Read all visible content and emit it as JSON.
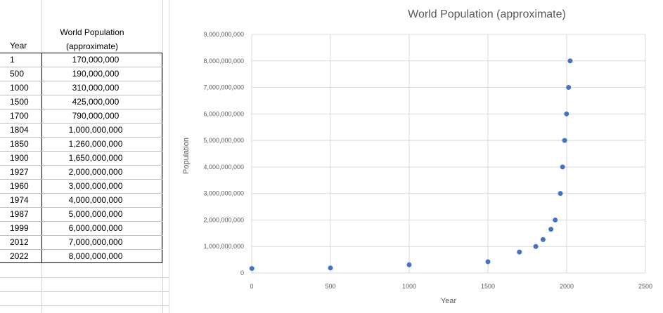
{
  "table": {
    "header_year": "Year",
    "header_pop_line1": "World Population",
    "header_pop_line2": "(approximate)",
    "rows": [
      {
        "year": "1",
        "pop": "170,000,000"
      },
      {
        "year": "500",
        "pop": "190,000,000"
      },
      {
        "year": "1000",
        "pop": "310,000,000"
      },
      {
        "year": "1500",
        "pop": "425,000,000"
      },
      {
        "year": "1700",
        "pop": "790,000,000"
      },
      {
        "year": "1804",
        "pop": "1,000,000,000"
      },
      {
        "year": "1850",
        "pop": "1,260,000,000"
      },
      {
        "year": "1900",
        "pop": "1,650,000,000"
      },
      {
        "year": "1927",
        "pop": "2,000,000,000"
      },
      {
        "year": "1960",
        "pop": "3,000,000,000"
      },
      {
        "year": "1974",
        "pop": "4,000,000,000"
      },
      {
        "year": "1987",
        "pop": "5,000,000,000"
      },
      {
        "year": "1999",
        "pop": "6,000,000,000"
      },
      {
        "year": "2012",
        "pop": "7,000,000,000"
      },
      {
        "year": "2022",
        "pop": "8,000,000,000"
      }
    ]
  },
  "chart_data": {
    "type": "scatter",
    "title": "World Population (approximate)",
    "xlabel": "Year",
    "ylabel": "Population",
    "xlim": [
      0,
      2500
    ],
    "ylim": [
      0,
      9000000000
    ],
    "x_ticks": [
      "0",
      "500",
      "1000",
      "1500",
      "2000",
      "2500"
    ],
    "y_ticks": [
      "0",
      "1,000,000,000",
      "2,000,000,000",
      "3,000,000,000",
      "4,000,000,000",
      "5,000,000,000",
      "6,000,000,000",
      "7,000,000,000",
      "8,000,000,000",
      "9,000,000,000"
    ],
    "grid": true,
    "legend": "none",
    "marker_color": "#4472c4",
    "x": [
      1,
      500,
      1000,
      1500,
      1700,
      1804,
      1850,
      1900,
      1927,
      1960,
      1974,
      1987,
      1999,
      2012,
      2022
    ],
    "y": [
      170000000,
      190000000,
      310000000,
      425000000,
      790000000,
      1000000000,
      1260000000,
      1650000000,
      2000000000,
      3000000000,
      4000000000,
      5000000000,
      6000000000,
      7000000000,
      8000000000
    ]
  }
}
